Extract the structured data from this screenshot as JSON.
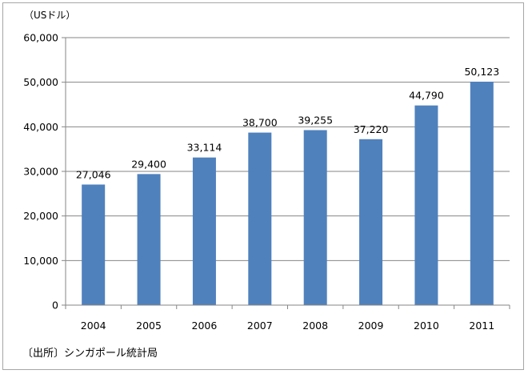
{
  "unit_label": "（USドル）",
  "source_label": "〔出所〕シンガポール統計局",
  "bar_color": "#4f81bd",
  "chart_data": {
    "type": "bar",
    "categories": [
      "2004",
      "2005",
      "2006",
      "2007",
      "2008",
      "2009",
      "2010",
      "2011"
    ],
    "values": [
      27046,
      29400,
      33114,
      38700,
      39255,
      37220,
      44790,
      50123
    ],
    "data_labels": [
      "27,046",
      "29,400",
      "33,114",
      "38,700",
      "39,255",
      "37,220",
      "44,790",
      "50,123"
    ],
    "yticks": [
      "0",
      "10,000",
      "20,000",
      "30,000",
      "40,000",
      "50,000",
      "60,000"
    ],
    "ylim": [
      0,
      60000
    ],
    "title": "",
    "xlabel": "",
    "ylabel": "（USドル）",
    "grid": true,
    "legend": "none"
  }
}
